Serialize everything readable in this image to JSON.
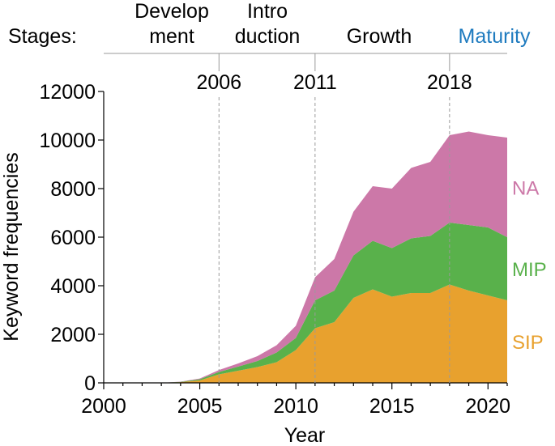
{
  "chart_data": {
    "type": "area",
    "stacked": true,
    "xlabel": "Year",
    "ylabel": "Keyword frequencies",
    "xlim": [
      2000,
      2021
    ],
    "ylim": [
      0,
      12000
    ],
    "x_ticks": [
      2000,
      2005,
      2010,
      2015,
      2020
    ],
    "y_ticks": [
      0,
      2000,
      4000,
      6000,
      8000,
      10000,
      12000
    ],
    "x": [
      2000,
      2001,
      2002,
      2003,
      2004,
      2005,
      2006,
      2007,
      2008,
      2009,
      2010,
      2011,
      2012,
      2013,
      2014,
      2015,
      2016,
      2017,
      2018,
      2019,
      2020,
      2021
    ],
    "series": [
      {
        "name": "SIP",
        "color": "#E8A12E",
        "values": [
          0,
          0,
          0,
          0,
          30,
          100,
          350,
          500,
          650,
          850,
          1350,
          2250,
          2500,
          3500,
          3850,
          3550,
          3700,
          3700,
          4050,
          3800,
          3600,
          3400
        ]
      },
      {
        "name": "MIP",
        "color": "#59B14B",
        "values": [
          0,
          0,
          0,
          0,
          10,
          50,
          100,
          170,
          250,
          400,
          500,
          1150,
          1300,
          1750,
          2000,
          2000,
          2250,
          2350,
          2550,
          2700,
          2800,
          2600
        ]
      },
      {
        "name": "NA",
        "color": "#CC78A8",
        "values": [
          0,
          0,
          0,
          0,
          10,
          30,
          80,
          130,
          200,
          300,
          500,
          950,
          1300,
          1800,
          2250,
          2450,
          2900,
          3050,
          3600,
          3850,
          3800,
          4100
        ]
      }
    ],
    "stage_label": "Stages:",
    "stages": [
      {
        "line1": "Develop",
        "line2": "ment",
        "color": "#000000"
      },
      {
        "line1": "Intro",
        "line2": "duction",
        "color": "#000000"
      },
      {
        "line1": "Growth",
        "line2": "",
        "color": "#000000"
      },
      {
        "line1": "Maturity",
        "line2": "",
        "color": "#1F7BBF"
      }
    ],
    "boundaries": [
      2006,
      2011,
      2018
    ]
  }
}
